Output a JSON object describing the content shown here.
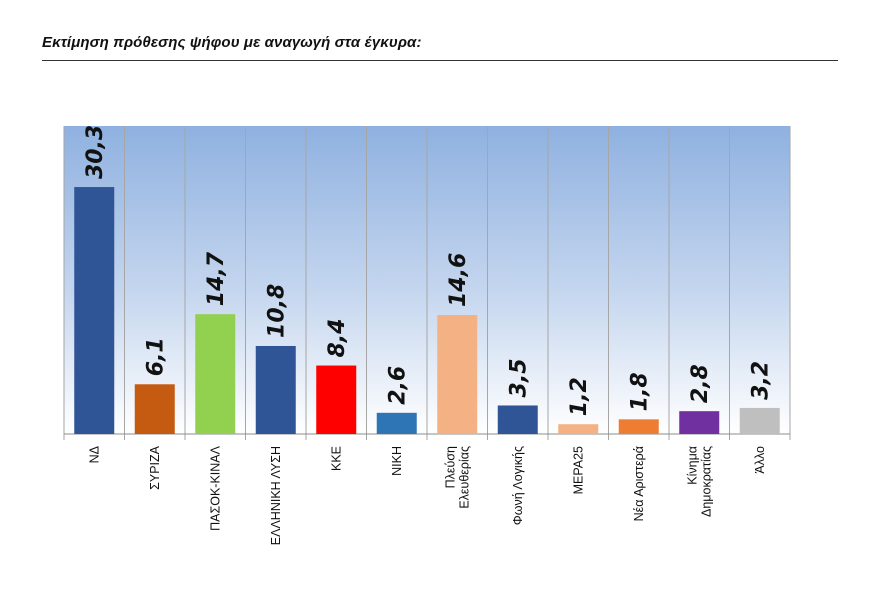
{
  "title": "Εκτίμηση πρόθεσης ψήφου με αναγωγή στα έγκυρα:",
  "chart_data": {
    "type": "bar",
    "title": "",
    "xlabel": "",
    "ylabel": "",
    "ylim": [
      0,
      40
    ],
    "grid": "vertical category separators",
    "background": "gradient #8fb1e0 to #ffffff",
    "categories": [
      [
        "ΝΔ"
      ],
      [
        "ΣΥΡΙΖΑ"
      ],
      [
        "ΠΑΣΟΚ-ΚΙΝΑΛ"
      ],
      [
        "ΕΛΛΗΝΙΚΗ ΛΥΣΗ"
      ],
      [
        "ΚΚΕ"
      ],
      [
        "ΝΙΚΗ"
      ],
      [
        "Πλεύση",
        "Ελευθερίας"
      ],
      [
        "Φωνή Λογικής"
      ],
      [
        "ΜΕΡΑ25"
      ],
      [
        "Νέα Αριστερά"
      ],
      [
        "Κίνημα",
        "Δημοκρατίας"
      ],
      [
        "Άλλο"
      ]
    ],
    "values": [
      30.3,
      6.1,
      14.7,
      10.8,
      8.4,
      2.6,
      14.6,
      3.5,
      1.2,
      1.8,
      2.8,
      3.2
    ],
    "value_labels": [
      "30,3",
      "6,1",
      "14,7",
      "10,8",
      "8,4",
      "2,6",
      "14,6",
      "3,5",
      "1,2",
      "1,8",
      "2,8",
      "3,2"
    ],
    "colors": [
      "#2f5597",
      "#c55a11",
      "#92d050",
      "#2f5597",
      "#ff0000",
      "#2e75b6",
      "#f4b183",
      "#2f5597",
      "#f4b183",
      "#ed7d31",
      "#7030a0",
      "#bfbfbf"
    ]
  }
}
